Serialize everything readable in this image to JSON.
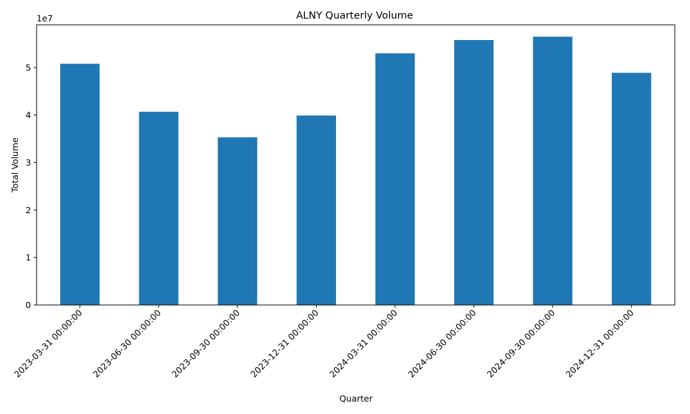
{
  "chart_data": {
    "type": "bar",
    "title": "ALNY Quarterly Volume",
    "xlabel": "Quarter",
    "ylabel": "Total Volume",
    "y_offset_label": "1e7",
    "ylim": [
      0,
      59000000
    ],
    "yticks": [
      0,
      10000000,
      20000000,
      30000000,
      40000000,
      50000000
    ],
    "ytick_labels": [
      "0",
      "1",
      "2",
      "3",
      "4",
      "5"
    ],
    "categories": [
      "2023-03-31 00:00:00",
      "2023-06-30 00:00:00",
      "2023-09-30 00:00:00",
      "2023-12-31 00:00:00",
      "2024-03-31 00:00:00",
      "2024-06-30 00:00:00",
      "2024-09-30 00:00:00",
      "2024-12-31 00:00:00"
    ],
    "values": [
      50800000,
      40700000,
      35300000,
      39900000,
      53000000,
      55800000,
      56500000,
      48900000
    ],
    "bar_color": "#1f77b4",
    "grid": false,
    "legend": "none"
  }
}
